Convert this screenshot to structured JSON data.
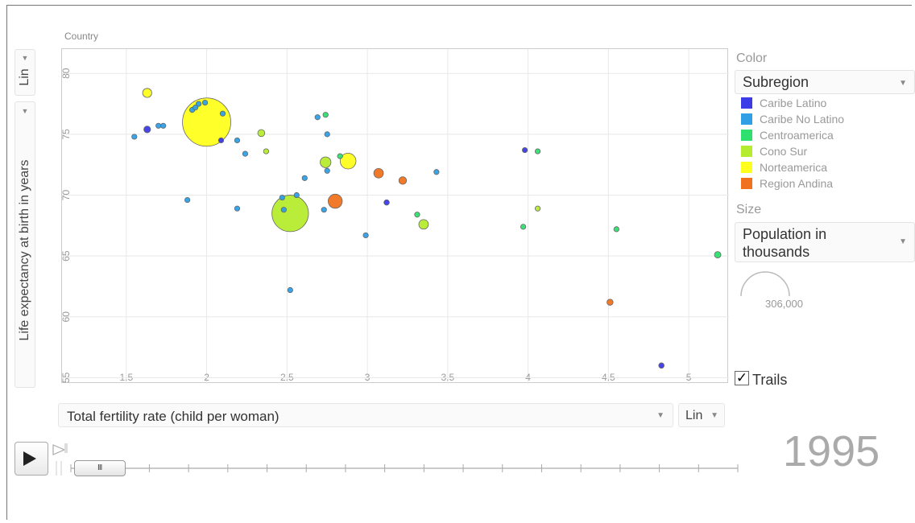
{
  "header": {
    "country_label": "Country"
  },
  "y_axis": {
    "scale_label": "Lin",
    "dropdown_label": "Life expectancy at birth in years"
  },
  "x_axis": {
    "dropdown_label": "Total fertility rate (child per woman)",
    "scale_label": "Lin"
  },
  "color": {
    "heading": "Color",
    "selected": "Subregion",
    "legend": [
      {
        "label": "Caribe Latino",
        "color": "#3b3be8"
      },
      {
        "label": "Caribe No Latino",
        "color": "#2f9fe6"
      },
      {
        "label": "Centroamerica",
        "color": "#2ee06e"
      },
      {
        "label": "Cono Sur",
        "color": "#b6ec2f"
      },
      {
        "label": "Norteamerica",
        "color": "#ffff1e"
      },
      {
        "label": "Region Andina",
        "color": "#f0721f"
      }
    ]
  },
  "size": {
    "heading": "Size",
    "selected": "Population in thousands",
    "legend_value": "306,000"
  },
  "trails": {
    "label": "Trails",
    "checked": true,
    "check_glyph": "✓"
  },
  "timeline": {
    "year": "1995",
    "thumb_glyph": "III",
    "play_icon": "play-icon",
    "speed_icon": "speed-icon"
  },
  "chart_data": {
    "type": "scatter",
    "title": "",
    "xlabel": "Total fertility rate (child per woman)",
    "ylabel": "Life expectancy at birth in years",
    "xlim": [
      1.1,
      5.25
    ],
    "ylim": [
      54.5,
      82
    ],
    "x_ticks": [
      1.5,
      2,
      2.5,
      3,
      3.5,
      4,
      4.5,
      5
    ],
    "x_tick_labels": [
      "1.5",
      "2",
      "2.5",
      "3",
      "3.5",
      "4",
      "4.5",
      "5"
    ],
    "y_ticks": [
      55,
      60,
      65,
      70,
      75,
      80
    ],
    "y_tick_labels": [
      "55",
      "60",
      "65",
      "70",
      "75",
      "80"
    ],
    "grid": true,
    "legend_position": "right",
    "size_variable": "Population in thousands",
    "points": [
      {
        "x": 2.0,
        "y": 76.0,
        "pop": 280000,
        "group": "Norteamerica"
      },
      {
        "x": 2.88,
        "y": 72.8,
        "pop": 30000,
        "group": "Norteamerica"
      },
      {
        "x": 1.63,
        "y": 78.4,
        "pop": 10000,
        "group": "Norteamerica"
      },
      {
        "x": 2.52,
        "y": 68.5,
        "pop": 160000,
        "group": "Cono Sur"
      },
      {
        "x": 2.74,
        "y": 72.7,
        "pop": 14000,
        "group": "Cono Sur"
      },
      {
        "x": 3.35,
        "y": 67.6,
        "pop": 11000,
        "group": "Cono Sur"
      },
      {
        "x": 2.34,
        "y": 75.1,
        "pop": 6000,
        "group": "Cono Sur"
      },
      {
        "x": 2.37,
        "y": 73.6,
        "pop": 2000,
        "group": "Cono Sur"
      },
      {
        "x": 4.06,
        "y": 68.9,
        "pop": 2000,
        "group": "Cono Sur"
      },
      {
        "x": 2.8,
        "y": 69.5,
        "pop": 24000,
        "group": "Region Andina"
      },
      {
        "x": 3.07,
        "y": 71.8,
        "pop": 11000,
        "group": "Region Andina"
      },
      {
        "x": 3.22,
        "y": 71.2,
        "pop": 7000,
        "group": "Region Andina"
      },
      {
        "x": 4.51,
        "y": 61.2,
        "pop": 4500,
        "group": "Region Andina"
      },
      {
        "x": 1.63,
        "y": 75.4,
        "pop": 5500,
        "group": "Caribe Latino"
      },
      {
        "x": 3.12,
        "y": 69.4,
        "pop": 3500,
        "group": "Caribe Latino"
      },
      {
        "x": 4.83,
        "y": 56.0,
        "pop": 3500,
        "group": "Caribe Latino"
      },
      {
        "x": 2.09,
        "y": 74.5,
        "pop": 1200,
        "group": "Caribe Latino"
      },
      {
        "x": 3.98,
        "y": 73.7,
        "pop": 1000,
        "group": "Caribe Latino"
      },
      {
        "x": 5.18,
        "y": 65.1,
        "pop": 5000,
        "group": "Centroamerica"
      },
      {
        "x": 4.55,
        "y": 67.2,
        "pop": 2800,
        "group": "Centroamerica"
      },
      {
        "x": 3.97,
        "y": 67.4,
        "pop": 2800,
        "group": "Centroamerica"
      },
      {
        "x": 3.31,
        "y": 68.4,
        "pop": 2500,
        "group": "Centroamerica"
      },
      {
        "x": 2.74,
        "y": 76.6,
        "pop": 2000,
        "group": "Centroamerica"
      },
      {
        "x": 2.83,
        "y": 73.2,
        "pop": 1000,
        "group": "Centroamerica"
      },
      {
        "x": 4.06,
        "y": 73.6,
        "pop": 800,
        "group": "Centroamerica"
      },
      {
        "x": 1.55,
        "y": 74.8,
        "pop": 500,
        "group": "Caribe No Latino"
      },
      {
        "x": 1.7,
        "y": 75.7,
        "pop": 500,
        "group": "Caribe No Latino"
      },
      {
        "x": 1.73,
        "y": 75.7,
        "pop": 500,
        "group": "Caribe No Latino"
      },
      {
        "x": 1.91,
        "y": 77.0,
        "pop": 500,
        "group": "Caribe No Latino"
      },
      {
        "x": 1.93,
        "y": 77.2,
        "pop": 500,
        "group": "Caribe No Latino"
      },
      {
        "x": 1.95,
        "y": 77.5,
        "pop": 500,
        "group": "Caribe No Latino"
      },
      {
        "x": 1.99,
        "y": 77.6,
        "pop": 500,
        "group": "Caribe No Latino"
      },
      {
        "x": 2.1,
        "y": 76.7,
        "pop": 500,
        "group": "Caribe No Latino"
      },
      {
        "x": 2.19,
        "y": 74.5,
        "pop": 500,
        "group": "Caribe No Latino"
      },
      {
        "x": 2.24,
        "y": 73.4,
        "pop": 500,
        "group": "Caribe No Latino"
      },
      {
        "x": 1.88,
        "y": 69.6,
        "pop": 500,
        "group": "Caribe No Latino"
      },
      {
        "x": 2.19,
        "y": 68.9,
        "pop": 500,
        "group": "Caribe No Latino"
      },
      {
        "x": 2.47,
        "y": 69.8,
        "pop": 500,
        "group": "Caribe No Latino"
      },
      {
        "x": 2.48,
        "y": 68.8,
        "pop": 500,
        "group": "Caribe No Latino"
      },
      {
        "x": 2.56,
        "y": 70.0,
        "pop": 500,
        "group": "Caribe No Latino"
      },
      {
        "x": 2.61,
        "y": 71.4,
        "pop": 500,
        "group": "Caribe No Latino"
      },
      {
        "x": 2.69,
        "y": 76.4,
        "pop": 500,
        "group": "Caribe No Latino"
      },
      {
        "x": 2.75,
        "y": 75.0,
        "pop": 500,
        "group": "Caribe No Latino"
      },
      {
        "x": 2.75,
        "y": 72.0,
        "pop": 500,
        "group": "Caribe No Latino"
      },
      {
        "x": 2.73,
        "y": 68.8,
        "pop": 500,
        "group": "Caribe No Latino"
      },
      {
        "x": 2.52,
        "y": 62.2,
        "pop": 500,
        "group": "Caribe No Latino"
      },
      {
        "x": 2.99,
        "y": 66.7,
        "pop": 500,
        "group": "Caribe No Latino"
      },
      {
        "x": 3.43,
        "y": 71.9,
        "pop": 500,
        "group": "Caribe No Latino"
      }
    ]
  }
}
